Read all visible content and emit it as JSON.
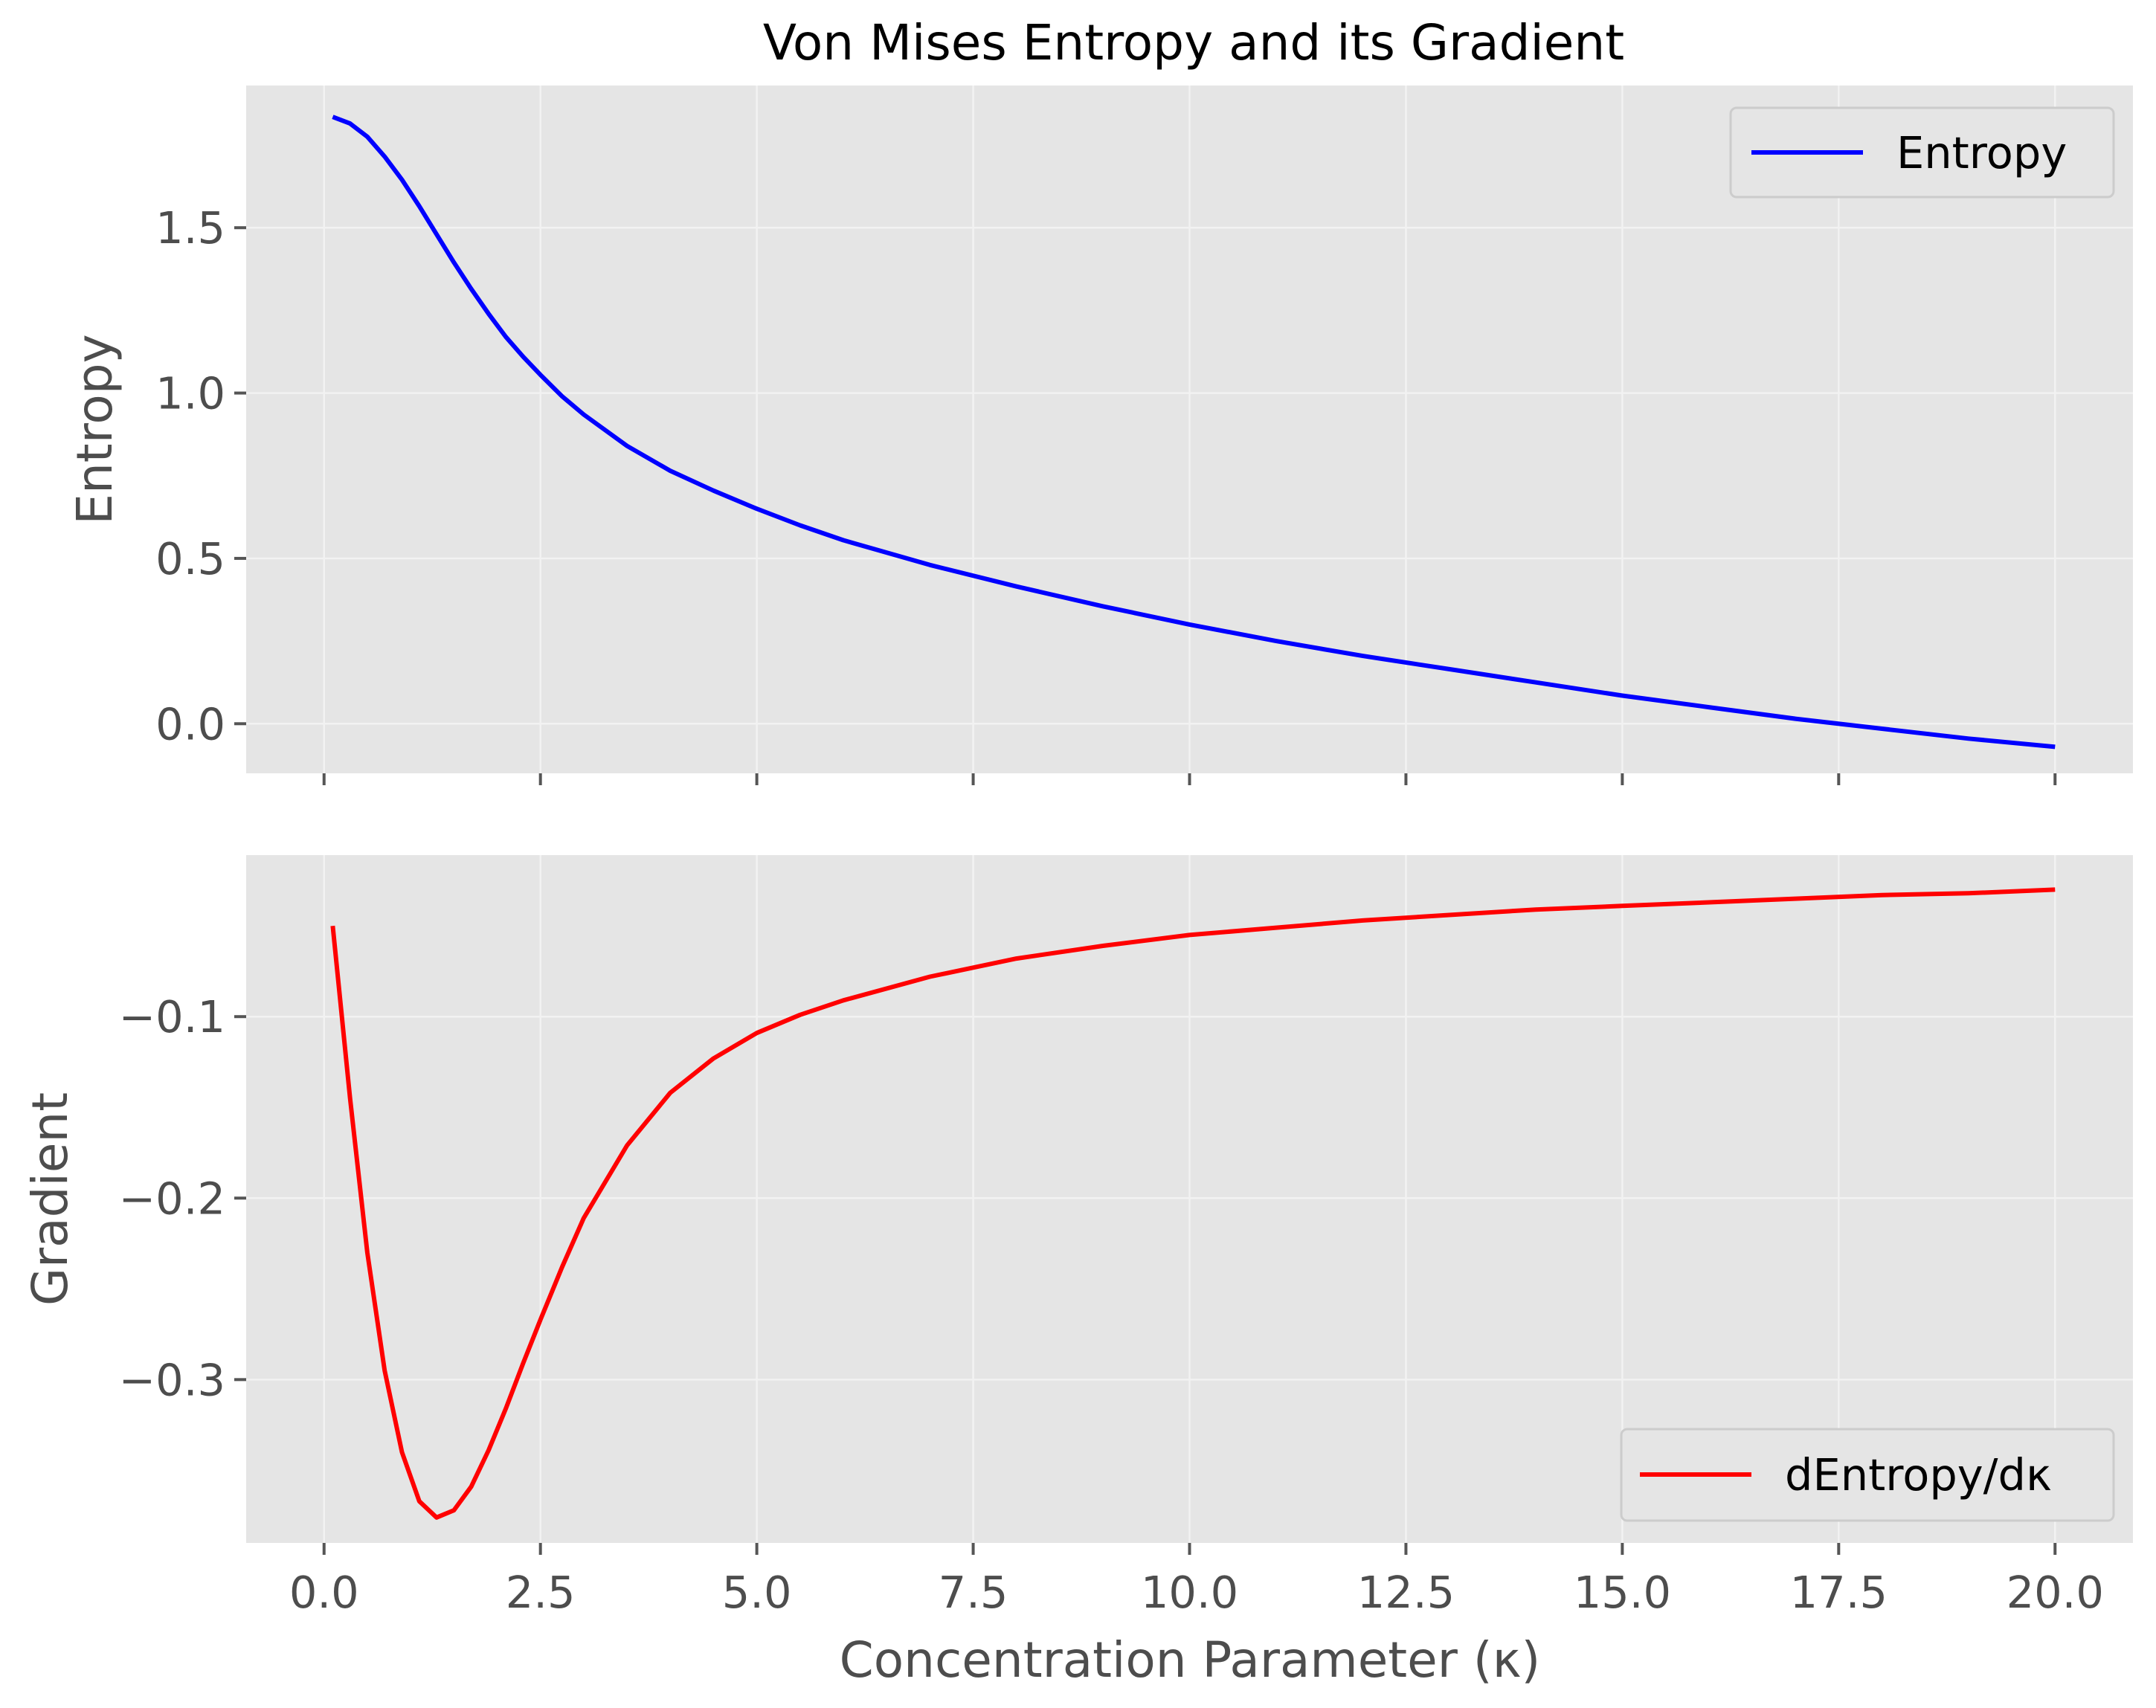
{
  "chart_data": {
    "title": "Von Mises Entropy and its Gradient",
    "xlabel": "Concentration Parameter (κ)",
    "xlim": [
      -0.9,
      20.9
    ],
    "xticks": [
      0.0,
      2.5,
      5.0,
      7.5,
      10.0,
      12.5,
      15.0,
      17.5,
      20.0
    ],
    "xtick_labels": [
      "0.0",
      "2.5",
      "5.0",
      "7.5",
      "10.0",
      "12.5",
      "15.0",
      "17.5",
      "20.0"
    ],
    "grid": true,
    "panels": [
      {
        "type": "line",
        "ylabel": "Entropy",
        "ylim": [
          -0.15,
          1.93
        ],
        "yticks": [
          0.0,
          0.5,
          1.0,
          1.5
        ],
        "ytick_labels": [
          "0.0",
          "0.5",
          "1.0",
          "1.5"
        ],
        "legend_position": "upper right",
        "series": [
          {
            "name": "Entropy",
            "color": "#0000ff",
            "x": [
              0.1,
              0.3,
              0.5,
              0.7,
              0.9,
              1.1,
              1.3,
              1.5,
              1.7,
              1.9,
              2.1,
              2.3,
              2.5,
              2.75,
              3.0,
              3.5,
              4.0,
              4.5,
              5.0,
              5.5,
              6.0,
              7.0,
              8.0,
              9.0,
              10.0,
              11.0,
              12.0,
              13.0,
              14.0,
              15.0,
              16.0,
              17.0,
              18.0,
              19.0,
              20.0
            ],
            "values": [
              1.835,
              1.815,
              1.775,
              1.715,
              1.645,
              1.565,
              1.48,
              1.395,
              1.315,
              1.24,
              1.17,
              1.11,
              1.055,
              0.99,
              0.935,
              0.84,
              0.765,
              0.705,
              0.65,
              0.6,
              0.555,
              0.48,
              0.415,
              0.355,
              0.3,
              0.25,
              0.205,
              0.165,
              0.125,
              0.085,
              0.05,
              0.015,
              -0.015,
              -0.045,
              -0.07
            ]
          }
        ]
      },
      {
        "type": "line",
        "ylabel": "Gradient",
        "ylim": [
          -0.39,
          -0.011
        ],
        "yticks": [
          -0.3,
          -0.2,
          -0.1
        ],
        "ytick_labels": [
          "−0.3",
          "−0.2",
          "−0.1"
        ],
        "legend_position": "lower right",
        "series": [
          {
            "name": "dEntropy/dκ",
            "color": "#ff0000",
            "x": [
              0.1,
              0.3,
              0.5,
              0.7,
              0.9,
              1.1,
              1.3,
              1.5,
              1.7,
              1.9,
              2.1,
              2.3,
              2.5,
              2.75,
              3.0,
              3.5,
              4.0,
              4.5,
              5.0,
              5.5,
              6.0,
              7.0,
              8.0,
              9.0,
              10.0,
              11.0,
              12.0,
              13.0,
              14.0,
              15.0,
              16.0,
              17.0,
              18.0,
              19.0,
              20.0
            ],
            "values": [
              -0.05,
              -0.145,
              -0.23,
              -0.295,
              -0.34,
              -0.367,
              -0.376,
              -0.372,
              -0.359,
              -0.339,
              -0.316,
              -0.291,
              -0.267,
              -0.238,
              -0.211,
              -0.171,
              -0.142,
              -0.123,
              -0.109,
              -0.099,
              -0.091,
              -0.078,
              -0.068,
              -0.061,
              -0.055,
              -0.051,
              -0.047,
              -0.044,
              -0.041,
              -0.039,
              -0.037,
              -0.035,
              -0.033,
              -0.032,
              -0.03
            ]
          }
        ]
      }
    ]
  }
}
